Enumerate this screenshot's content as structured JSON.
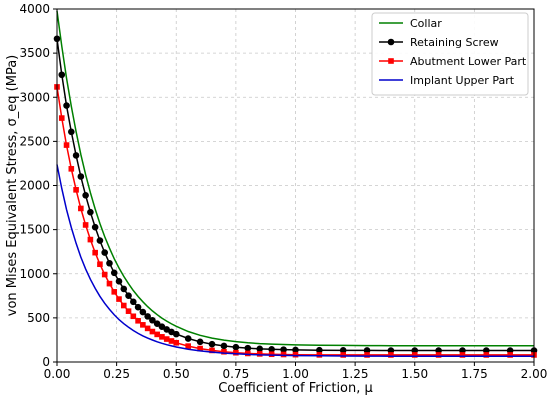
{
  "chart_data": {
    "type": "line",
    "title": "",
    "xlabel": "Coefficient of Friction, μ",
    "ylabel": "von Mises Equivalent Stress, σ_eq (MPa)",
    "xlim": [
      0,
      2
    ],
    "ylim": [
      0,
      4000
    ],
    "xticks": [
      "0.00",
      "0.25",
      "0.50",
      "0.75",
      "1.00",
      "1.25",
      "1.50",
      "1.75",
      "2.00"
    ],
    "yticks": [
      "0",
      "500",
      "1000",
      "1500",
      "2000",
      "2500",
      "3000",
      "3500",
      "4000"
    ],
    "grid": true,
    "legend_position": "top-right",
    "x": [
      0.0,
      0.02,
      0.04,
      0.06,
      0.08,
      0.1,
      0.12,
      0.14,
      0.16,
      0.18,
      0.2,
      0.22,
      0.24,
      0.26,
      0.28,
      0.3,
      0.32,
      0.34,
      0.36,
      0.38,
      0.4,
      0.42,
      0.44,
      0.46,
      0.48,
      0.5,
      0.55,
      0.6,
      0.65,
      0.7,
      0.75,
      0.8,
      0.85,
      0.9,
      0.95,
      1.0,
      1.1,
      1.2,
      1.3,
      1.4,
      1.5,
      1.6,
      1.7,
      1.8,
      1.9,
      2.0
    ],
    "series": [
      {
        "name": "Collar",
        "color": "#008000",
        "marker": "none",
        "values": [
          3978,
          3577,
          3218,
          2897,
          2610,
          2353,
          2123,
          1918,
          1733,
          1569,
          1421,
          1289,
          1171,
          1065,
          970,
          886,
          810,
          742,
          682,
          628,
          579,
          536,
          497,
          463,
          432,
          404,
          346,
          303,
          271,
          248,
          231,
          218,
          209,
          203,
          198,
          194,
          190,
          188,
          186,
          185,
          185,
          185,
          185,
          185,
          185,
          185
        ]
      },
      {
        "name": "Retaining Screw",
        "color": "#000000",
        "marker": "circle",
        "values": [
          3663,
          3255,
          2906,
          2608,
          2341,
          2102,
          1889,
          1698,
          1528,
          1376,
          1240,
          1119,
          1011,
          914,
          828,
          751,
          682,
          621,
          566,
          517,
          473,
          434,
          400,
          369,
          341,
          316,
          266,
          229,
          202,
          182,
          168,
          157,
          149,
          144,
          140,
          137,
          134,
          132,
          131,
          130,
          130,
          130,
          130,
          130,
          130,
          130
        ]
      },
      {
        "name": "Abutment Lower Part",
        "color": "#ff0000",
        "marker": "square",
        "values": [
          3117,
          2764,
          2458,
          2189,
          1951,
          1740,
          1553,
          1387,
          1239,
          1108,
          991,
          888,
          795,
          713,
          640,
          576,
          518,
          467,
          421,
          381,
          345,
          313,
          285,
          260,
          238,
          218,
          180,
          152,
          131,
          116,
          105,
          97,
          92,
          88,
          85,
          83,
          81,
          80,
          80,
          80,
          80,
          80,
          80,
          80,
          80,
          80
        ]
      },
      {
        "name": "Implant Upper Part",
        "color": "#0000cc",
        "marker": "none",
        "values": [
          2238,
          1965,
          1729,
          1524,
          1345,
          1190,
          1055,
          937,
          834,
          744,
          665,
          596,
          535,
          481,
          434,
          393,
          357,
          324,
          296,
          271,
          249,
          229,
          212,
          196,
          182,
          170,
          145,
          126,
          112,
          101,
          93,
          86,
          81,
          78,
          75,
          73,
          70,
          68,
          67,
          66,
          66,
          66,
          66,
          66,
          66,
          66
        ]
      }
    ]
  }
}
